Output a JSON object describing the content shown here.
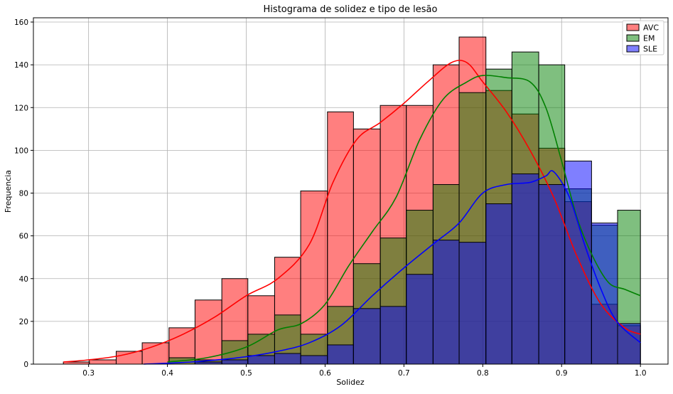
{
  "chart_data": {
    "type": "histogram",
    "title": "Histograma de solidez e tipo de lesão",
    "xlabel": "Solidez",
    "ylabel": "Frequencia",
    "xlim": [
      0.23,
      1.035
    ],
    "ylim": [
      0,
      162
    ],
    "xticks": [
      "0.3",
      "0.4",
      "0.5",
      "0.6",
      "0.7",
      "0.8",
      "0.9",
      "1.0"
    ],
    "yticks": [
      "0",
      "20",
      "40",
      "60",
      "80",
      "100",
      "120",
      "140",
      "160"
    ],
    "grid": true,
    "legend_position": "top-right",
    "colors": {
      "AVC_fill": "#ff8080",
      "AVC_line": "#ff0000",
      "EM_fill": "#80bf80",
      "EM_line": "#008000",
      "SLE_fill": "#8080ff",
      "SLE_line": "#0000ff",
      "overlap_rg": "#807f40",
      "overlap_rgb": "#40409f"
    },
    "series": [
      {
        "name": "AVC",
        "bins": [
          {
            "x0": 0.268,
            "x1": 0.301,
            "count": 1
          },
          {
            "x0": 0.301,
            "x1": 0.335,
            "count": 2
          },
          {
            "x0": 0.335,
            "x1": 0.368,
            "count": 6
          },
          {
            "x0": 0.368,
            "x1": 0.402,
            "count": 10
          },
          {
            "x0": 0.402,
            "x1": 0.435,
            "count": 17
          },
          {
            "x0": 0.435,
            "x1": 0.469,
            "count": 30
          },
          {
            "x0": 0.469,
            "x1": 0.502,
            "count": 40
          },
          {
            "x0": 0.502,
            "x1": 0.536,
            "count": 32
          },
          {
            "x0": 0.536,
            "x1": 0.569,
            "count": 50
          },
          {
            "x0": 0.569,
            "x1": 0.603,
            "count": 81
          },
          {
            "x0": 0.603,
            "x1": 0.636,
            "count": 118
          },
          {
            "x0": 0.636,
            "x1": 0.67,
            "count": 110
          },
          {
            "x0": 0.67,
            "x1": 0.703,
            "count": 121
          },
          {
            "x0": 0.703,
            "x1": 0.737,
            "count": 121
          },
          {
            "x0": 0.737,
            "x1": 0.77,
            "count": 140
          },
          {
            "x0": 0.77,
            "x1": 0.804,
            "count": 153
          },
          {
            "x0": 0.804,
            "x1": 0.837,
            "count": 128
          },
          {
            "x0": 0.837,
            "x1": 0.871,
            "count": 117
          },
          {
            "x0": 0.871,
            "x1": 0.904,
            "count": 101
          },
          {
            "x0": 0.904,
            "x1": 0.938,
            "count": 76
          },
          {
            "x0": 0.938,
            "x1": 0.971,
            "count": 28
          },
          {
            "x0": 0.971,
            "x1": 1.0,
            "count": 18
          }
        ],
        "kde": [
          [
            0.268,
            1
          ],
          [
            0.3,
            2
          ],
          [
            0.34,
            4
          ],
          [
            0.38,
            8
          ],
          [
            0.42,
            14
          ],
          [
            0.46,
            22
          ],
          [
            0.5,
            32
          ],
          [
            0.54,
            40
          ],
          [
            0.58,
            56
          ],
          [
            0.61,
            85
          ],
          [
            0.64,
            105
          ],
          [
            0.67,
            113
          ],
          [
            0.7,
            122
          ],
          [
            0.73,
            132
          ],
          [
            0.76,
            141
          ],
          [
            0.78,
            141
          ],
          [
            0.8,
            132
          ],
          [
            0.83,
            118
          ],
          [
            0.86,
            100
          ],
          [
            0.89,
            78
          ],
          [
            0.92,
            50
          ],
          [
            0.95,
            28
          ],
          [
            0.98,
            17
          ],
          [
            1.0,
            14
          ]
        ]
      },
      {
        "name": "EM",
        "bins": [
          {
            "x0": 0.402,
            "x1": 0.435,
            "count": 3
          },
          {
            "x0": 0.435,
            "x1": 0.469,
            "count": 2
          },
          {
            "x0": 0.469,
            "x1": 0.502,
            "count": 11
          },
          {
            "x0": 0.502,
            "x1": 0.536,
            "count": 14
          },
          {
            "x0": 0.536,
            "x1": 0.569,
            "count": 23
          },
          {
            "x0": 0.569,
            "x1": 0.603,
            "count": 14
          },
          {
            "x0": 0.603,
            "x1": 0.636,
            "count": 27
          },
          {
            "x0": 0.636,
            "x1": 0.67,
            "count": 47
          },
          {
            "x0": 0.67,
            "x1": 0.703,
            "count": 59
          },
          {
            "x0": 0.703,
            "x1": 0.737,
            "count": 72
          },
          {
            "x0": 0.737,
            "x1": 0.77,
            "count": 84
          },
          {
            "x0": 0.77,
            "x1": 0.804,
            "count": 127
          },
          {
            "x0": 0.804,
            "x1": 0.837,
            "count": 138
          },
          {
            "x0": 0.837,
            "x1": 0.871,
            "count": 146
          },
          {
            "x0": 0.871,
            "x1": 0.904,
            "count": 140
          },
          {
            "x0": 0.904,
            "x1": 0.938,
            "count": 82
          },
          {
            "x0": 0.938,
            "x1": 0.971,
            "count": 65
          },
          {
            "x0": 0.971,
            "x1": 1.0,
            "count": 72
          }
        ],
        "kde": [
          [
            0.4,
            1
          ],
          [
            0.45,
            3
          ],
          [
            0.5,
            8
          ],
          [
            0.54,
            16
          ],
          [
            0.57,
            19
          ],
          [
            0.6,
            28
          ],
          [
            0.63,
            46
          ],
          [
            0.66,
            62
          ],
          [
            0.69,
            78
          ],
          [
            0.72,
            105
          ],
          [
            0.75,
            124
          ],
          [
            0.78,
            132
          ],
          [
            0.8,
            135
          ],
          [
            0.83,
            134
          ],
          [
            0.86,
            132
          ],
          [
            0.88,
            120
          ],
          [
            0.9,
            95
          ],
          [
            0.92,
            68
          ],
          [
            0.94,
            50
          ],
          [
            0.96,
            38
          ],
          [
            0.98,
            35
          ],
          [
            1.0,
            32
          ]
        ]
      },
      {
        "name": "SLE",
        "bins": [
          {
            "x0": 0.435,
            "x1": 0.469,
            "count": 1
          },
          {
            "x0": 0.469,
            "x1": 0.502,
            "count": 2
          },
          {
            "x0": 0.502,
            "x1": 0.536,
            "count": 4
          },
          {
            "x0": 0.536,
            "x1": 0.569,
            "count": 5
          },
          {
            "x0": 0.569,
            "x1": 0.603,
            "count": 4
          },
          {
            "x0": 0.603,
            "x1": 0.636,
            "count": 9
          },
          {
            "x0": 0.636,
            "x1": 0.67,
            "count": 26
          },
          {
            "x0": 0.67,
            "x1": 0.703,
            "count": 27
          },
          {
            "x0": 0.703,
            "x1": 0.737,
            "count": 42
          },
          {
            "x0": 0.737,
            "x1": 0.77,
            "count": 58
          },
          {
            "x0": 0.77,
            "x1": 0.804,
            "count": 57
          },
          {
            "x0": 0.804,
            "x1": 0.837,
            "count": 75
          },
          {
            "x0": 0.837,
            "x1": 0.871,
            "count": 89
          },
          {
            "x0": 0.871,
            "x1": 0.904,
            "count": 84
          },
          {
            "x0": 0.904,
            "x1": 0.938,
            "count": 95
          },
          {
            "x0": 0.938,
            "x1": 0.971,
            "count": 66
          },
          {
            "x0": 0.971,
            "x1": 1.0,
            "count": 19
          }
        ],
        "kde": [
          [
            0.37,
            0
          ],
          [
            0.43,
            1
          ],
          [
            0.49,
            3
          ],
          [
            0.54,
            6
          ],
          [
            0.58,
            10
          ],
          [
            0.62,
            18
          ],
          [
            0.66,
            32
          ],
          [
            0.7,
            45
          ],
          [
            0.74,
            57
          ],
          [
            0.77,
            66
          ],
          [
            0.8,
            80
          ],
          [
            0.83,
            84
          ],
          [
            0.86,
            85
          ],
          [
            0.88,
            88
          ],
          [
            0.89,
            90
          ],
          [
            0.91,
            78
          ],
          [
            0.93,
            55
          ],
          [
            0.95,
            35
          ],
          [
            0.97,
            20
          ],
          [
            1.0,
            10
          ]
        ]
      }
    ]
  }
}
